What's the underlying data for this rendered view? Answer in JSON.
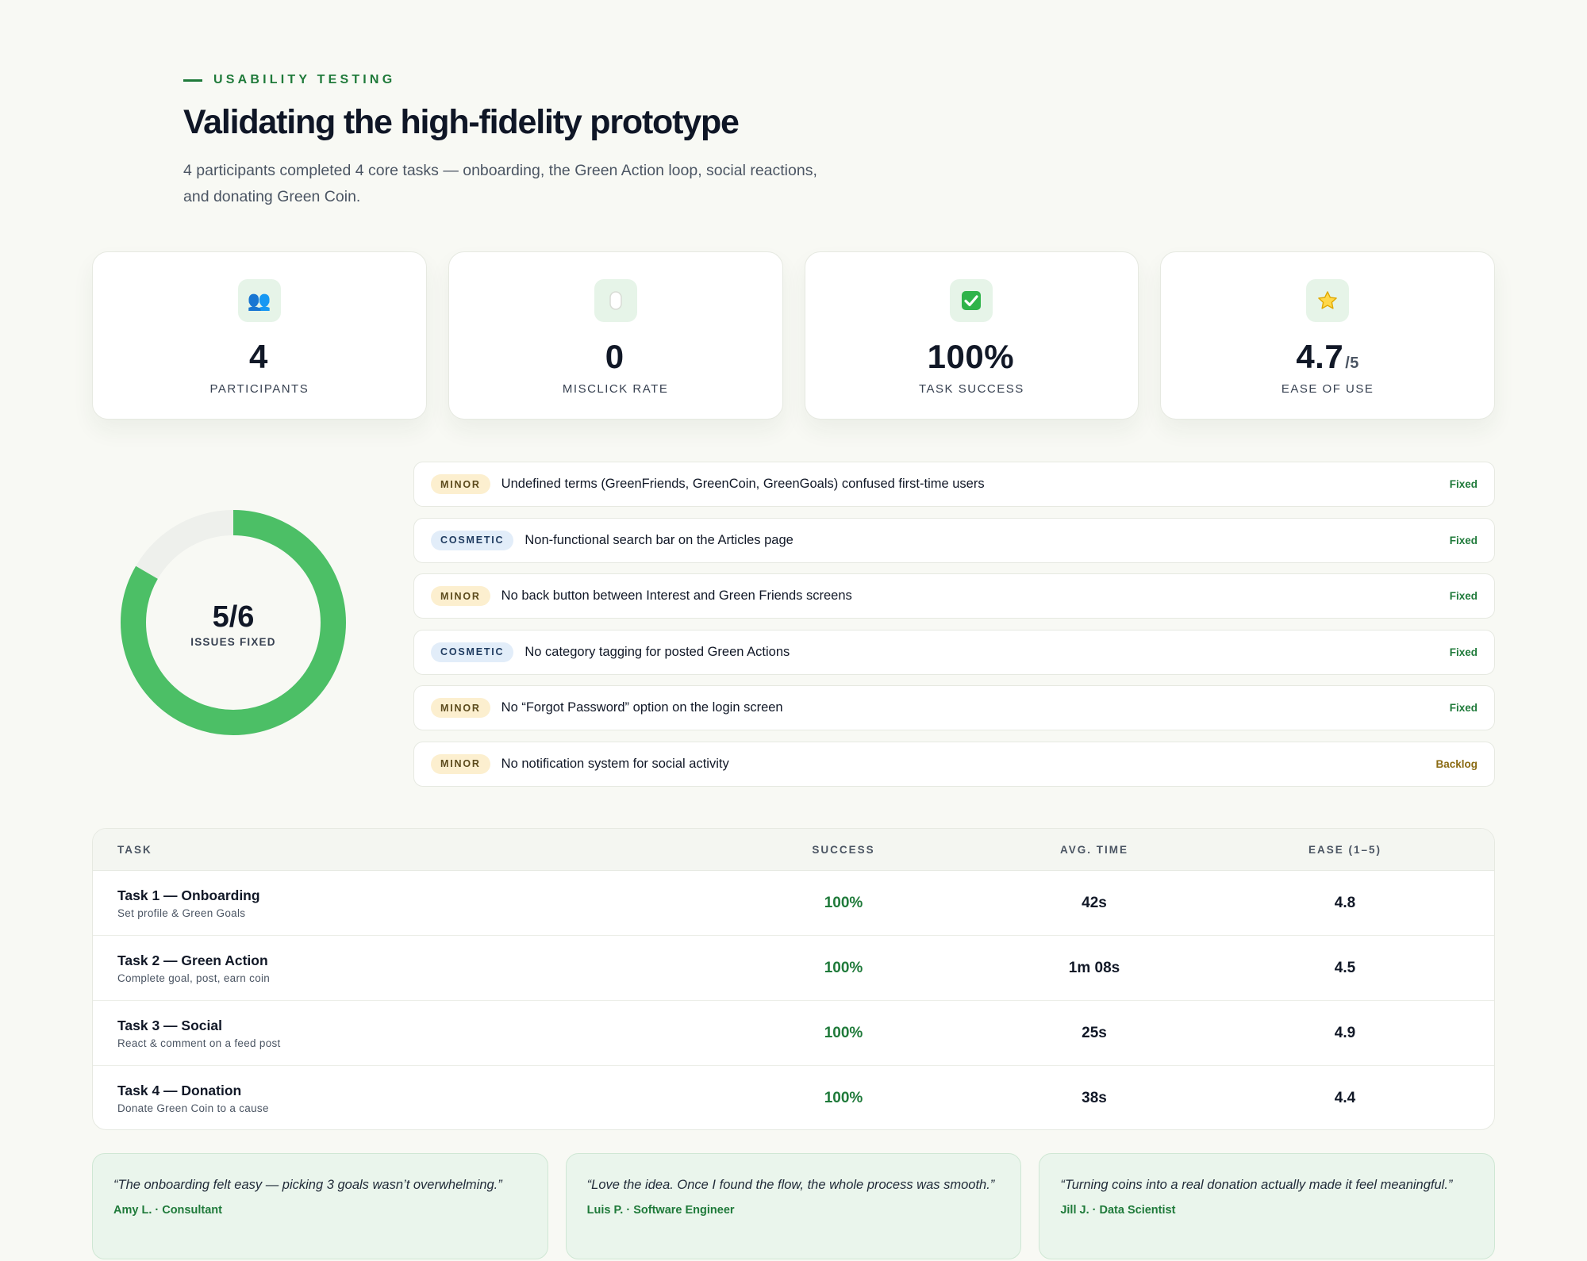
{
  "header": {
    "eyebrow": "USABILITY TESTING",
    "title": "Validating the high-fidelity prototype",
    "subtitle": "4 participants completed 4 core tasks — onboarding, the Green Action loop, social reactions, and donating Green Coin."
  },
  "stats": [
    {
      "icon": "people-icon",
      "glyph": "👥",
      "value": "4",
      "suffix": "",
      "label": "PARTICIPANTS"
    },
    {
      "icon": "mouse-icon",
      "glyph": "▯",
      "value": "0",
      "suffix": "",
      "label": "MISCLICK RATE"
    },
    {
      "icon": "checkmark-icon",
      "glyph": "✅",
      "value": "100%",
      "suffix": "",
      "label": "TASK SUCCESS"
    },
    {
      "icon": "star-icon",
      "glyph": "⭐",
      "value": "4.7",
      "suffix": "/5",
      "label": "EASE OF USE"
    }
  ],
  "donut": {
    "value": "5/6",
    "label": "ISSUES FIXED",
    "fixed": 5,
    "total": 6,
    "color_done": "#4cbf66",
    "color_rest": "#eef0ec"
  },
  "issues": [
    {
      "severity": "MINOR",
      "type": "minor",
      "text": "Undefined terms (GreenFriends, GreenCoin, GreenGoals) confused first-time users",
      "status": "Fixed"
    },
    {
      "severity": "COSMETIC",
      "type": "cosmetic",
      "text": "Non-functional search bar on the Articles page",
      "status": "Fixed"
    },
    {
      "severity": "MINOR",
      "type": "minor",
      "text": "No back button between Interest and Green Friends screens",
      "status": "Fixed"
    },
    {
      "severity": "COSMETIC",
      "type": "cosmetic",
      "text": "No category tagging for posted Green Actions",
      "status": "Fixed"
    },
    {
      "severity": "MINOR",
      "type": "minor",
      "text": "No “Forgot Password” option on the login screen",
      "status": "Fixed"
    },
    {
      "severity": "MINOR",
      "type": "minor",
      "text": "No notification system for social activity",
      "status": "Backlog"
    }
  ],
  "table": {
    "headers": {
      "task": "TASK",
      "success": "SUCCESS",
      "time": "AVG. TIME",
      "ease": "EASE (1–5)"
    },
    "rows": [
      {
        "name": "Task 1 — Onboarding",
        "sub": "Set profile & Green Goals",
        "success": "100%",
        "time": "42s",
        "ease": "4.8"
      },
      {
        "name": "Task 2 — Green Action",
        "sub": "Complete goal, post, earn coin",
        "success": "100%",
        "time": "1m 08s",
        "ease": "4.5"
      },
      {
        "name": "Task 3 — Social",
        "sub": "React & comment on a feed post",
        "success": "100%",
        "time": "25s",
        "ease": "4.9"
      },
      {
        "name": "Task 4 — Donation",
        "sub": "Donate Green Coin to a cause",
        "success": "100%",
        "time": "38s",
        "ease": "4.4"
      }
    ]
  },
  "quotes": [
    {
      "text": "“The onboarding felt easy — picking 3 goals wasn’t overwhelming.”",
      "author": "Amy L. · Consultant"
    },
    {
      "text": "“Love the idea. Once I found the flow, the whole process was smooth.”",
      "author": "Luis P. · Software Engineer"
    },
    {
      "text": "“Turning coins into a real donation actually made it feel meaningful.”",
      "author": "Jill J. · Data Scientist"
    }
  ],
  "colors": {
    "accent": "#1f7a3a",
    "background": "#f8f9f4",
    "donut_green": "#4cbf66"
  }
}
